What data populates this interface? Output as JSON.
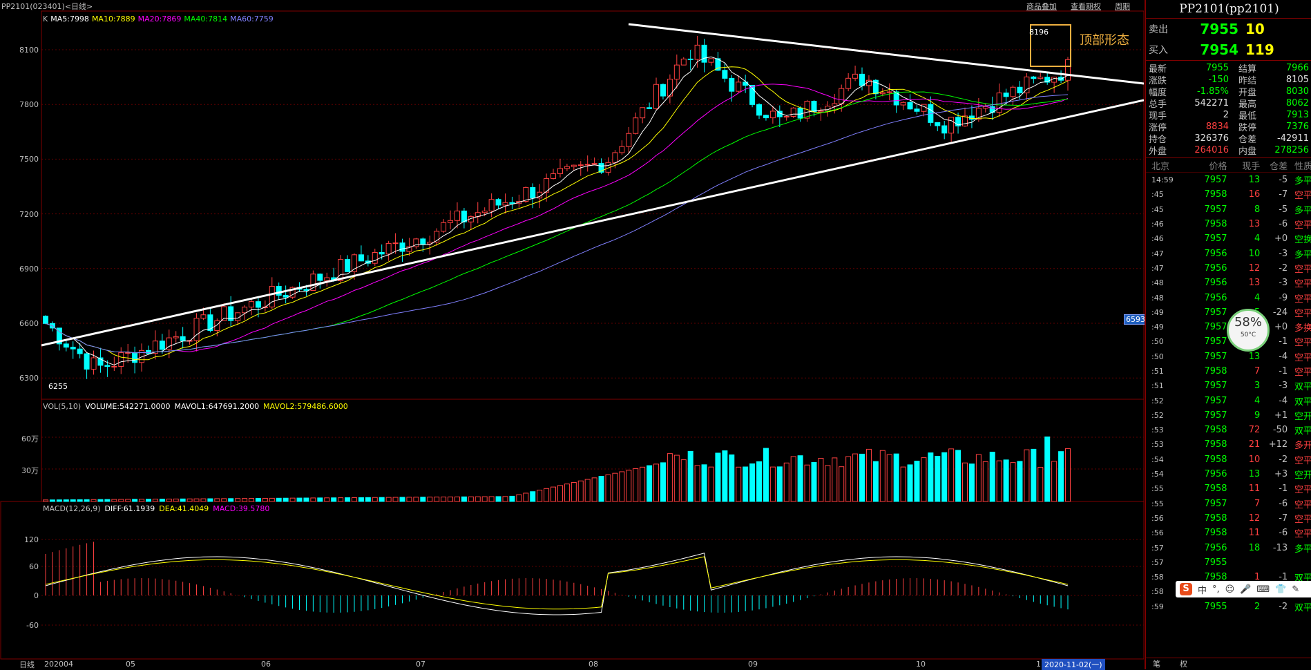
{
  "header": {
    "title": "PP2101(023401)<日线>",
    "menu": [
      "商品叠加",
      "查看期权",
      "周期"
    ]
  },
  "ma_legend": {
    "k": "K",
    "items": [
      {
        "label": "MA5:7998",
        "color": "#ffffff"
      },
      {
        "label": "MA10:7889",
        "color": "#ffff00"
      },
      {
        "label": "MA20:7869",
        "color": "#ff00ff"
      },
      {
        "label": "MA40:7814",
        "color": "#00ff00"
      },
      {
        "label": "MA60:7759",
        "color": "#8080ff"
      }
    ]
  },
  "price_axis": [
    "8100",
    "7800",
    "7500",
    "7200",
    "6900",
    "6600",
    "6300"
  ],
  "vol_axis": [
    "60万",
    "30万"
  ],
  "macd_axis": [
    "120",
    "60",
    "0",
    "-60"
  ],
  "x_axis": [
    "202004",
    "05",
    "06",
    "07",
    "08",
    "09",
    "10",
    "1"
  ],
  "date_tag": "2020-11-02(一)",
  "daily_btn": "日线",
  "last_price_tag": "6593",
  "annotation": {
    "pattern": "顶部形态",
    "high": "8196",
    "low": "6255"
  },
  "vol_legend": {
    "title": "VOL(5,10)",
    "volume": "VOLUME:542271.0000",
    "mavol1": "MAVOL1:647691.2000",
    "mavol2": "MAVOL2:579486.6000"
  },
  "macd_legend": {
    "title": "MACD(12,26,9)",
    "diff": "DIFF:61.1939",
    "dea": "DEA:41.4049",
    "macd": "MACD:39.5780"
  },
  "chart_data": {
    "type": "candlestick",
    "series_summary": {
      "first_month": "202004",
      "price_ylim": [
        6200,
        8250
      ],
      "low": 6255,
      "high": 8196
    }
  },
  "side": {
    "title": "PP2101(pp2101)",
    "ask": {
      "label": "卖出",
      "price": "7955",
      "vol": "10"
    },
    "bid": {
      "label": "买入",
      "price": "7954",
      "vol": "119"
    },
    "stats": [
      {
        "k": "最新",
        "v": "7955",
        "vc": "green",
        "k2": "结算",
        "v2": "7966",
        "v2c": "green"
      },
      {
        "k": "涨跌",
        "v": "-150",
        "vc": "green",
        "k2": "昨结",
        "v2": "8105",
        "v2c": "white"
      },
      {
        "k": "幅度",
        "v": "-1.85%",
        "vc": "green",
        "k2": "开盘",
        "v2": "8030",
        "v2c": "green"
      },
      {
        "k": "总手",
        "v": "542271",
        "vc": "white",
        "k2": "最高",
        "v2": "8062",
        "v2c": "green"
      },
      {
        "k": "现手",
        "v": "2",
        "vc": "white",
        "k2": "最低",
        "v2": "7913",
        "v2c": "green"
      },
      {
        "k": "涨停",
        "v": "8834",
        "vc": "red",
        "k2": "跌停",
        "v2": "7376",
        "v2c": "green"
      },
      {
        "k": "持仓",
        "v": "326376",
        "vc": "white",
        "k2": "仓差",
        "v2": "-42911",
        "v2c": "white"
      },
      {
        "k": "外盘",
        "v": "264016",
        "vc": "red",
        "k2": "内盘",
        "v2": "278256",
        "v2c": "green"
      }
    ],
    "ticks_header": [
      "北京",
      "价格",
      "现手",
      "仓差",
      "性质"
    ],
    "ticks": [
      {
        "t": "14:59",
        "p": "7957",
        "q": "13",
        "qc": "green",
        "oi": "-5",
        "nat": "多平",
        "nc": "green"
      },
      {
        "t": ":45",
        "p": "7958",
        "q": "16",
        "qc": "red",
        "oi": "-7",
        "nat": "空平",
        "nc": "red"
      },
      {
        "t": ":45",
        "p": "7957",
        "q": "8",
        "qc": "green",
        "oi": "-5",
        "nat": "多平",
        "nc": "green"
      },
      {
        "t": ":46",
        "p": "7958",
        "q": "13",
        "qc": "red",
        "oi": "-6",
        "nat": "空平",
        "nc": "red"
      },
      {
        "t": ":46",
        "p": "7957",
        "q": "4",
        "qc": "green",
        "oi": "+0",
        "nat": "空换",
        "nc": "green"
      },
      {
        "t": ":47",
        "p": "7956",
        "q": "10",
        "qc": "green",
        "oi": "-3",
        "nat": "多平",
        "nc": "green"
      },
      {
        "t": ":47",
        "p": "7956",
        "q": "12",
        "qc": "red",
        "oi": "-2",
        "nat": "空平",
        "nc": "red"
      },
      {
        "t": ":48",
        "p": "7956",
        "q": "13",
        "qc": "red",
        "oi": "-3",
        "nat": "空平",
        "nc": "red"
      },
      {
        "t": ":48",
        "p": "7956",
        "q": "4",
        "qc": "green",
        "oi": "-9",
        "nat": "空平",
        "nc": "red"
      },
      {
        "t": ":49",
        "p": "7957",
        "q": "5",
        "qc": "green",
        "oi": "-24",
        "nat": "空平",
        "nc": "red"
      },
      {
        "t": ":49",
        "p": "7957",
        "q": "7",
        "qc": "green",
        "oi": "+0",
        "nat": "多换",
        "nc": "red"
      },
      {
        "t": ":50",
        "p": "7957",
        "q": "7",
        "qc": "red",
        "oi": "-1",
        "nat": "空平",
        "nc": "red"
      },
      {
        "t": ":50",
        "p": "7957",
        "q": "13",
        "qc": "green",
        "oi": "-4",
        "nat": "空平",
        "nc": "red"
      },
      {
        "t": ":51",
        "p": "7958",
        "q": "7",
        "qc": "red",
        "oi": "-1",
        "nat": "空平",
        "nc": "red"
      },
      {
        "t": ":51",
        "p": "7957",
        "q": "3",
        "qc": "green",
        "oi": "-3",
        "nat": "双平",
        "nc": "green"
      },
      {
        "t": ":52",
        "p": "7957",
        "q": "4",
        "qc": "green",
        "oi": "-4",
        "nat": "双平",
        "nc": "green"
      },
      {
        "t": ":52",
        "p": "7957",
        "q": "9",
        "qc": "green",
        "oi": "+1",
        "nat": "空开",
        "nc": "green"
      },
      {
        "t": ":53",
        "p": "7958",
        "q": "72",
        "qc": "red",
        "oi": "-50",
        "nat": "双平",
        "nc": "green"
      },
      {
        "t": ":53",
        "p": "7958",
        "q": "21",
        "qc": "red",
        "oi": "+12",
        "nat": "多开",
        "nc": "red"
      },
      {
        "t": ":54",
        "p": "7958",
        "q": "10",
        "qc": "red",
        "oi": "-2",
        "nat": "空平",
        "nc": "red"
      },
      {
        "t": ":54",
        "p": "7956",
        "q": "13",
        "qc": "green",
        "oi": "+3",
        "nat": "空开",
        "nc": "green"
      },
      {
        "t": ":55",
        "p": "7958",
        "q": "11",
        "qc": "red",
        "oi": "-1",
        "nat": "空平",
        "nc": "red"
      },
      {
        "t": ":55",
        "p": "7957",
        "q": "7",
        "qc": "red",
        "oi": "-6",
        "nat": "空平",
        "nc": "red"
      },
      {
        "t": ":56",
        "p": "7958",
        "q": "12",
        "qc": "red",
        "oi": "-7",
        "nat": "空平",
        "nc": "red"
      },
      {
        "t": ":56",
        "p": "7958",
        "q": "11",
        "qc": "red",
        "oi": "-6",
        "nat": "空平",
        "nc": "red"
      },
      {
        "t": ":57",
        "p": "7956",
        "q": "18",
        "qc": "green",
        "oi": "-13",
        "nat": "多平",
        "nc": "green"
      },
      {
        "t": ":57",
        "p": "7955",
        "q": "",
        "qc": "green",
        "oi": "",
        "nat": "",
        "nc": "green"
      },
      {
        "t": ":58",
        "p": "7958",
        "q": "1",
        "qc": "red",
        "oi": "-1",
        "nat": "双平",
        "nc": "green"
      },
      {
        "t": ":58",
        "p": "7954",
        "q": "11",
        "qc": "green",
        "oi": "+1",
        "nat": "空开",
        "nc": "green"
      },
      {
        "t": ":59",
        "p": "7955",
        "q": "2",
        "qc": "green",
        "oi": "-2",
        "nat": "双平",
        "nc": "green"
      }
    ],
    "bottom_tabs": [
      "笔",
      "权"
    ]
  },
  "gauge": {
    "pct": "58%",
    "temp": "50°C"
  },
  "ime": {
    "logo": "S",
    "items": [
      "中",
      "°,",
      "☺",
      "🎤",
      "⌨",
      "👕",
      "✎"
    ]
  }
}
